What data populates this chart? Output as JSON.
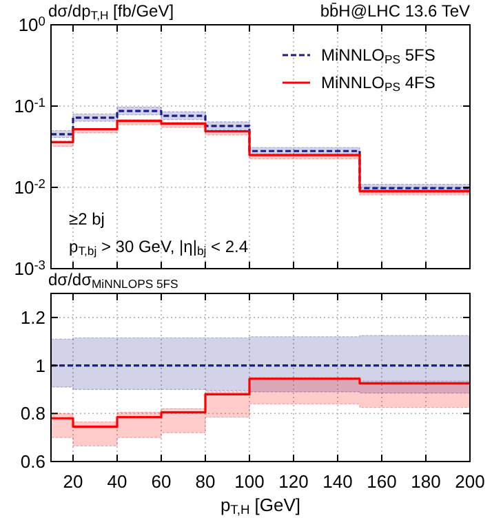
{
  "chart_data": [
    {
      "type": "step",
      "title": "bb̄H@LHC 13.6 TeV",
      "ylabel": "dσ/dp$_{T,H}$ [fb/GeV]",
      "log": true,
      "grid": true,
      "legend": "top right",
      "tick_labels": "y",
      "xlim": [
        10,
        200
      ],
      "xticks": [
        20,
        40,
        60,
        80,
        100,
        120,
        140,
        160,
        180,
        200
      ],
      "ylim": [
        0.001,
        1
      ],
      "yticks": [
        {
          "value": 0.001,
          "label": "10$^{-3}$"
        },
        {
          "value": 0.01,
          "label": "10$^{-2}$"
        },
        {
          "value": 0.1,
          "label": "10$^{-1}$"
        },
        {
          "value": 1,
          "label": "10$^{0}$"
        }
      ],
      "annotations": [
        "≥2 bj",
        "p$_{T,bj}$ > 30 GeV, |η|$_{bj}$ < 2.4"
      ],
      "x": [
        10,
        20,
        40,
        60,
        80,
        100,
        150,
        200
      ],
      "series": [
        {
          "name": "MiNNLO$_{PS}$ 5FS",
          "color": "#1c1c8c",
          "line_style": "dashed",
          "values": [
            0.045,
            0.072,
            0.087,
            0.076,
            0.057,
            0.028,
            0.0098,
            0.0098
          ],
          "lower": [
            0.041,
            0.065,
            0.078,
            0.068,
            0.051,
            0.025,
            0.0086,
            0.0086
          ],
          "upper": [
            0.05,
            0.08,
            0.097,
            0.085,
            0.064,
            0.031,
            0.0109,
            0.0109
          ]
        },
        {
          "name": "MiNNLO$_{PS}$ 4FS",
          "color": "#ff0000",
          "line_style": "solid",
          "values": [
            0.036,
            0.052,
            0.066,
            0.061,
            0.049,
            0.025,
            0.009,
            0.009
          ],
          "lower": [
            0.032,
            0.047,
            0.059,
            0.055,
            0.044,
            0.0225,
            0.0081,
            0.0081
          ],
          "upper": [
            0.037,
            0.053,
            0.068,
            0.063,
            0.05,
            0.0256,
            0.0092,
            0.0092
          ]
        }
      ]
    },
    {
      "type": "step",
      "ylabel": "dσ/dσ$_{MiNNLOPS 5FS}$",
      "xlabel": "p$_{T,H}$ [GeV]",
      "grid": true,
      "xlim": [
        10,
        200
      ],
      "xticks": [
        20,
        40,
        60,
        80,
        100,
        120,
        140,
        160,
        180,
        200
      ],
      "ylim": [
        0.6,
        1.3
      ],
      "yticks": [
        0.6,
        0.8,
        1,
        1.2
      ],
      "x": [
        10,
        20,
        40,
        60,
        80,
        100,
        150,
        200
      ],
      "series": [
        {
          "color": "#1c1c8c",
          "line_style": "dashed",
          "values": [
            1,
            1,
            1,
            1,
            1,
            1,
            1,
            1
          ],
          "lower": [
            0.91,
            0.9,
            0.9,
            0.9,
            0.895,
            0.89,
            0.885,
            0.885
          ],
          "upper": [
            1.11,
            1.115,
            1.115,
            1.115,
            1.115,
            1.12,
            1.125,
            1.125
          ]
        },
        {
          "color": "#ff0000",
          "line_style": "solid",
          "values": [
            0.78,
            0.745,
            0.785,
            0.805,
            0.88,
            0.945,
            0.925,
            0.925
          ],
          "lower": [
            0.7,
            0.665,
            0.7,
            0.72,
            0.785,
            0.84,
            0.825,
            0.825
          ],
          "upper": [
            0.8,
            0.765,
            0.805,
            0.82,
            0.89,
            0.95,
            0.935,
            0.935
          ]
        }
      ]
    }
  ]
}
